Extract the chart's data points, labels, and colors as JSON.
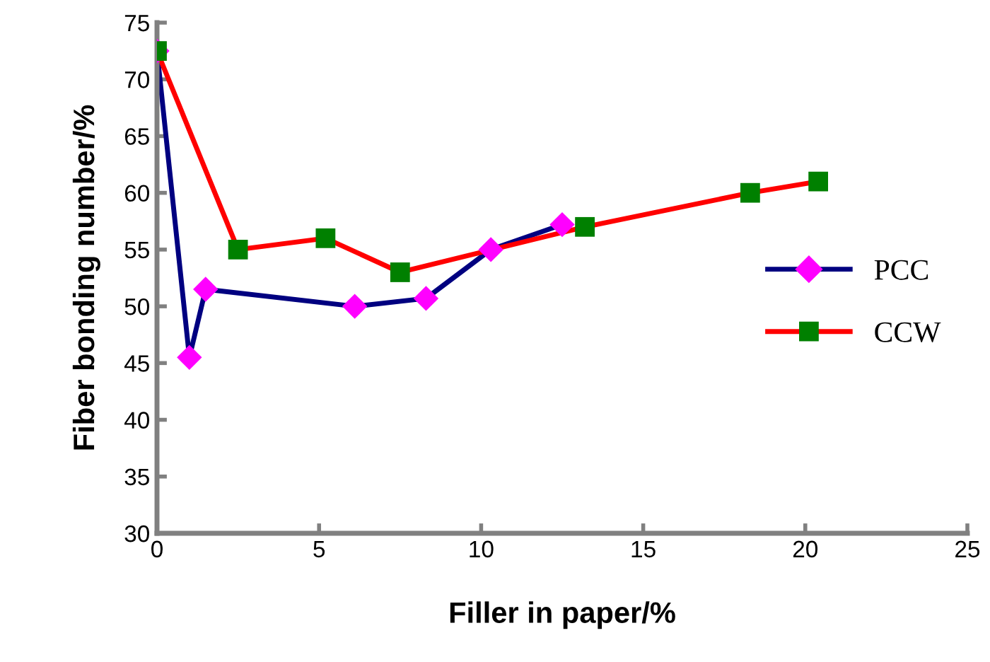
{
  "chart_data": {
    "type": "line",
    "xlabel": "Filler in paper/%",
    "ylabel": "Fiber bonding number/%",
    "xlim": [
      0,
      25
    ],
    "xticks": [
      0,
      5,
      10,
      15,
      20,
      25
    ],
    "ylim": [
      30,
      75
    ],
    "yticks": [
      30,
      35,
      40,
      45,
      50,
      55,
      60,
      65,
      70,
      75
    ],
    "grid": false,
    "legend": "right",
    "line_style": "solid",
    "series": [
      {
        "name": "PCC",
        "color": "#000080",
        "colors": [
          "#ff00ff",
          "#ff00ff",
          "#ff00ff",
          "#ff00ff",
          "#ff00ff",
          "#ff00ff",
          "#ff00ff"
        ],
        "marker": "diamond",
        "x": [
          0,
          1.0,
          1.5,
          6.1,
          8.3,
          10.3,
          12.5
        ],
        "values": [
          72.5,
          45.5,
          51.5,
          50,
          50.7,
          55,
          57.2
        ]
      },
      {
        "name": "CCW",
        "color": "#ff0000",
        "colors": [
          "#008000",
          "#008000",
          "#008000",
          "#008000",
          "#008000",
          "#008000",
          "#008000"
        ],
        "marker": "square",
        "x": [
          0,
          2.5,
          5.2,
          7.5,
          13.2,
          18.3,
          20.4
        ],
        "values": [
          72.5,
          55,
          56,
          53,
          57,
          60,
          61
        ]
      }
    ]
  }
}
